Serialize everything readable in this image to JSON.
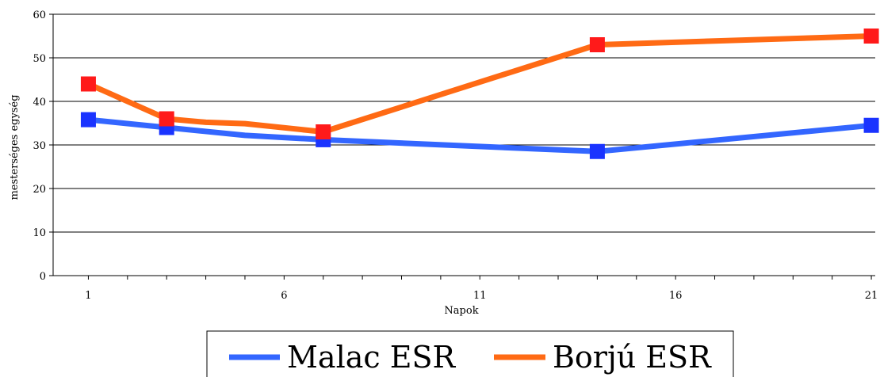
{
  "chart_data": {
    "type": "line",
    "xlabel": "Napok",
    "ylabel": "mesterséges egység",
    "xlim": [
      0.1,
      21.1
    ],
    "ylim": [
      0,
      60
    ],
    "x_ticks": [
      1,
      6,
      11,
      16,
      21
    ],
    "x_minor_ticks": [
      1,
      2,
      3,
      4,
      5,
      6,
      7,
      8,
      9,
      10,
      11,
      12,
      13,
      14,
      15,
      16,
      17,
      18,
      19,
      20,
      21
    ],
    "y_ticks": [
      0,
      10,
      20,
      30,
      40,
      50,
      60
    ],
    "grid": true,
    "legend_position": "bottom-center",
    "series": [
      {
        "name": "Malac ESR",
        "line_color": "#3366ff",
        "marker_color": "#1a33ff",
        "points": [
          [
            1,
            35.8
          ],
          [
            3,
            34
          ],
          [
            5,
            32.2
          ],
          [
            7,
            31.2
          ],
          [
            14,
            28.5
          ],
          [
            21,
            34.5
          ]
        ],
        "markers": [
          [
            1,
            35.8
          ],
          [
            3,
            34
          ],
          [
            7,
            31.2
          ],
          [
            14,
            28.5
          ],
          [
            21,
            34.5
          ]
        ]
      },
      {
        "name": "Borjú ESR",
        "line_color": "#ff6a14",
        "marker_color": "#ff1a1a",
        "points": [
          [
            1,
            44
          ],
          [
            3,
            36
          ],
          [
            4,
            35.2
          ],
          [
            5,
            34.9
          ],
          [
            7,
            33
          ],
          [
            14,
            53
          ],
          [
            21,
            55
          ]
        ],
        "markers": [
          [
            1,
            44
          ],
          [
            3,
            36
          ],
          [
            7,
            33
          ],
          [
            14,
            53
          ],
          [
            21,
            55
          ]
        ]
      }
    ]
  }
}
